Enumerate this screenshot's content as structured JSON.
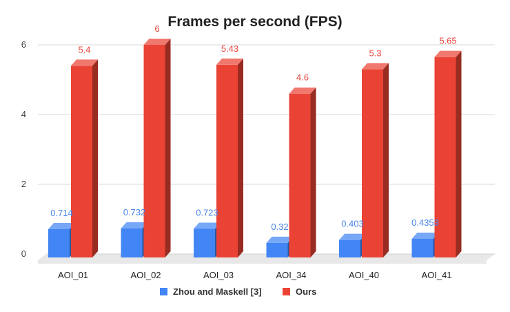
{
  "chart_data": {
    "type": "bar",
    "title": "Frames per second (FPS)",
    "xlabel": "",
    "ylabel": "",
    "ylim": [
      0,
      6
    ],
    "yticks": [
      "0",
      "2",
      "4",
      "6"
    ],
    "grid": true,
    "legend_position": "bottom",
    "categories": [
      "AOI_01",
      "AOI_02",
      "AOI_03",
      "AOI_34",
      "AOI_40",
      "AOI_41"
    ],
    "series": [
      {
        "name": "Zhou and Maskell [3]",
        "values": [
          0.714,
          0.732,
          0.723,
          0.32,
          0.403,
          0.4353
        ],
        "labels": [
          "0.714",
          "0.732",
          "0.723",
          "0.32",
          "0.403",
          "0.4353"
        ],
        "color": "#4285f4",
        "label_color": "#4a86e8"
      },
      {
        "name": "Ours",
        "values": [
          5.4,
          6,
          5.43,
          4.6,
          5.3,
          5.65
        ],
        "labels": [
          "5.4",
          "6",
          "5.43",
          "4.6",
          "5.3",
          "5.65"
        ],
        "color": "#ea4335",
        "label_color": "#e8453c"
      }
    ]
  }
}
